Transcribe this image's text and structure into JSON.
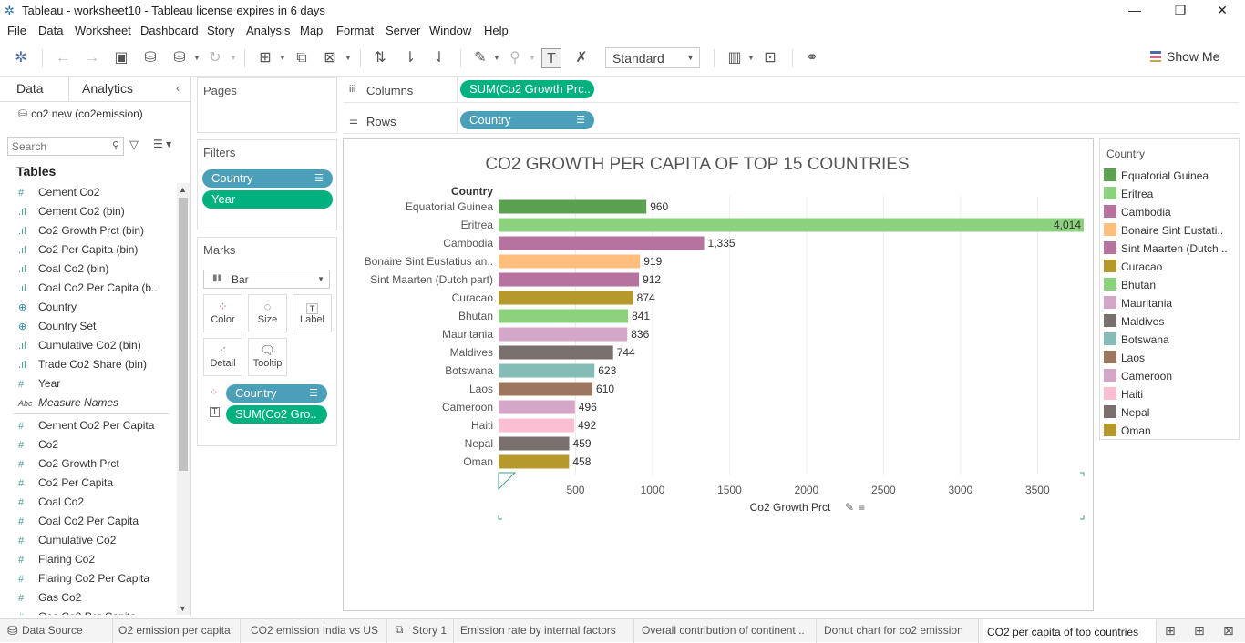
{
  "window": {
    "title": "Tableau - worksheet10 - Tableau license expires in 6 days",
    "app_icon": "tableau-logo-icon"
  },
  "menu": [
    "File",
    "Data",
    "Worksheet",
    "Dashboard",
    "Story",
    "Analysis",
    "Map",
    "Format",
    "Server",
    "Window",
    "Help"
  ],
  "toolbar": {
    "fit_value": "Standard",
    "show_me_label": "Show Me"
  },
  "left": {
    "data_tab": "Data",
    "analytics_tab": "Analytics",
    "datasource": "co2 new (co2emission)",
    "search_placeholder": "Search",
    "tables_heading": "Tables",
    "fields": [
      {
        "name": "Cement Co2",
        "type": "measure"
      },
      {
        "name": "Cement Co2 (bin)",
        "type": "bin"
      },
      {
        "name": "Co2 Growth Prct (bin)",
        "type": "bin"
      },
      {
        "name": "Co2 Per Capita (bin)",
        "type": "bin"
      },
      {
        "name": "Coal Co2 (bin)",
        "type": "bin"
      },
      {
        "name": "Coal Co2 Per Capita (b...",
        "type": "bin"
      },
      {
        "name": "Country",
        "type": "geo"
      },
      {
        "name": "Country Set",
        "type": "set"
      },
      {
        "name": "Cumulative Co2 (bin)",
        "type": "bin"
      },
      {
        "name": "Trade Co2 Share (bin)",
        "type": "bin"
      },
      {
        "name": "Year",
        "type": "measure"
      },
      {
        "name": "Measure Names",
        "type": "string"
      },
      {
        "name": "",
        "type": "separator"
      },
      {
        "name": "Cement Co2 Per Capita",
        "type": "measure"
      },
      {
        "name": "Co2",
        "type": "measure"
      },
      {
        "name": "Co2 Growth Prct",
        "type": "measure"
      },
      {
        "name": "Co2 Per Capita",
        "type": "measure"
      },
      {
        "name": "Coal Co2",
        "type": "measure"
      },
      {
        "name": "Coal Co2 Per Capita",
        "type": "measure"
      },
      {
        "name": "Cumulative Co2",
        "type": "measure"
      },
      {
        "name": "Flaring Co2",
        "type": "measure"
      },
      {
        "name": "Flaring Co2 Per Capita",
        "type": "measure"
      },
      {
        "name": "Gas Co2",
        "type": "measure"
      },
      {
        "name": "Gas Co2 Per Capita",
        "type": "measure"
      }
    ]
  },
  "pages": {
    "title": "Pages"
  },
  "filters": {
    "title": "Filters",
    "pills": [
      "Country",
      "Year"
    ]
  },
  "marks": {
    "title": "Marks",
    "type": "Bar",
    "buttons": [
      "Color",
      "Size",
      "Label",
      "Detail",
      "Tooltip"
    ],
    "pills": [
      "Country",
      "SUM(Co2 Gro.."
    ]
  },
  "shelves": {
    "columns_label": "Columns",
    "columns_pill": "SUM(Co2 Growth Prc..",
    "rows_label": "Rows",
    "rows_pill": "Country"
  },
  "chart_data": {
    "type": "bar",
    "orientation": "horizontal",
    "title": "CO2 GROWTH PER CAPITA OF TOP 15 COUNTRIES",
    "row_header": "Country",
    "xlabel": "Co2 Growth Prct",
    "xlim": [
      0,
      3800
    ],
    "xticks": [
      500,
      1000,
      1500,
      2000,
      2500,
      3000,
      3500
    ],
    "categories": [
      "Equatorial Guinea",
      "Eritrea",
      "Cambodia",
      "Bonaire Sint Eustatius an..",
      "Sint Maarten (Dutch part)",
      "Curacao",
      "Bhutan",
      "Mauritania",
      "Maldives",
      "Botswana",
      "Laos",
      "Cameroon",
      "Haiti",
      "Nepal",
      "Oman"
    ],
    "values": [
      960,
      4014,
      1335,
      919,
      912,
      874,
      841,
      836,
      744,
      623,
      610,
      496,
      492,
      459,
      458
    ],
    "labels": [
      "960",
      "4,014",
      "1,335",
      "919",
      "912",
      "874",
      "841",
      "836",
      "744",
      "623",
      "610",
      "496",
      "492",
      "459",
      "458"
    ],
    "colors": [
      "#59a14f",
      "#8cd17d",
      "#b6739f",
      "#ffbe7d",
      "#b6739f",
      "#b6992d",
      "#8cd17d",
      "#d4a6c8",
      "#79706e",
      "#86bcb6",
      "#9d7660",
      "#d4a6c8",
      "#fabfd2",
      "#79706e",
      "#b6992d"
    ],
    "grid": true,
    "legend": "right"
  },
  "legend": {
    "title": "Country",
    "items": [
      {
        "label": "Equatorial Guinea",
        "color": "#59a14f"
      },
      {
        "label": "Eritrea",
        "color": "#8cd17d"
      },
      {
        "label": "Cambodia",
        "color": "#b6739f"
      },
      {
        "label": "Bonaire Sint Eustati..",
        "color": "#ffbe7d"
      },
      {
        "label": "Sint Maarten (Dutch ..",
        "color": "#b6739f"
      },
      {
        "label": "Curacao",
        "color": "#b6992d"
      },
      {
        "label": "Bhutan",
        "color": "#8cd17d"
      },
      {
        "label": "Mauritania",
        "color": "#d4a6c8"
      },
      {
        "label": "Maldives",
        "color": "#79706e"
      },
      {
        "label": "Botswana",
        "color": "#86bcb6"
      },
      {
        "label": "Laos",
        "color": "#9d7660"
      },
      {
        "label": "Cameroon",
        "color": "#d4a6c8"
      },
      {
        "label": "Haiti",
        "color": "#fabfd2"
      },
      {
        "label": "Nepal",
        "color": "#79706e"
      },
      {
        "label": "Oman",
        "color": "#b6992d"
      }
    ]
  },
  "sheet_tabs": [
    {
      "label": "Data Source",
      "active": false
    },
    {
      "label": "O2 emission per capita",
      "active": false
    },
    {
      "label": "CO2 emission India vs US",
      "active": false
    },
    {
      "label": "Story 1",
      "active": false
    },
    {
      "label": "Emission rate by internal factors",
      "active": false
    },
    {
      "label": "Overall contribution of continent...",
      "active": false
    },
    {
      "label": "Donut chart for co2 emission",
      "active": false
    },
    {
      "label": "CO2 per capita of top countries",
      "active": true
    }
  ]
}
